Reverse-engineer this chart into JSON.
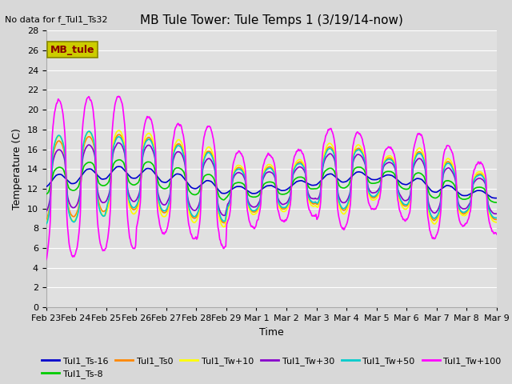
{
  "title": "MB Tule Tower: Tule Temps 1 (3/19/14-now)",
  "no_data_text": "No data for f_Tul1_Ts32",
  "xlabel": "Time",
  "ylabel": "Temperature (C)",
  "ylim": [
    0,
    28
  ],
  "yticks": [
    0,
    2,
    4,
    6,
    8,
    10,
    12,
    14,
    16,
    18,
    20,
    22,
    24,
    26,
    28
  ],
  "xtick_labels": [
    "Feb 23",
    "Feb 24",
    "Feb 25",
    "Feb 26",
    "Feb 27",
    "Feb 28",
    "Feb 29",
    "Mar 1",
    "Mar 2",
    "Mar 3",
    "Mar 4",
    "Mar 5",
    "Mar 6",
    "Mar 7",
    "Mar 8",
    "Mar 9"
  ],
  "legend_entries": [
    "Tul1_Ts-16",
    "Tul1_Ts-8",
    "Tul1_Ts0",
    "Tul1_Tw+10",
    "Tul1_Tw+30",
    "Tul1_Tw+50",
    "Tul1_Tw+100"
  ],
  "line_colors": [
    "#0000cc",
    "#00cc00",
    "#ff8800",
    "#ffff00",
    "#8800cc",
    "#00cccc",
    "#ff00ff"
  ],
  "line_widths": [
    1.2,
    1.2,
    1.2,
    1.2,
    1.2,
    1.2,
    1.2
  ],
  "plot_bg_color": "#e0e0e0",
  "fig_bg_color": "#d8d8d8",
  "mb_tule_box_facecolor": "#cccc00",
  "mb_tule_box_edgecolor": "#888800",
  "mb_tule_text_color": "#880000",
  "title_fontsize": 11,
  "axis_label_fontsize": 9,
  "tick_fontsize": 8,
  "legend_fontsize": 8,
  "nodata_fontsize": 8
}
